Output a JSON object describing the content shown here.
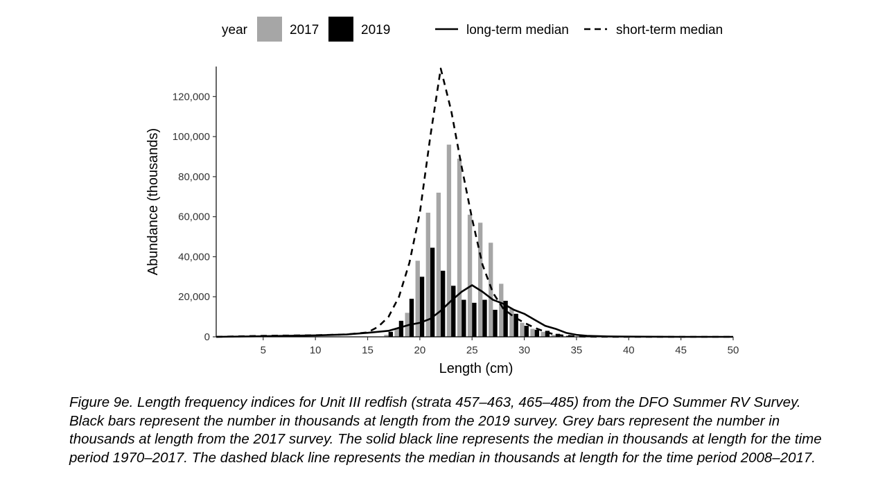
{
  "chart_data": {
    "type": "bar",
    "xlabel": "Length (cm)",
    "ylabel": "Abundance (thousands)",
    "xlim": [
      0.5,
      50
    ],
    "ylim": [
      0,
      135000
    ],
    "x_ticks": [
      5,
      10,
      15,
      20,
      25,
      30,
      35,
      40,
      45,
      50
    ],
    "y_ticks": [
      0,
      20000,
      40000,
      60000,
      80000,
      100000,
      120000
    ],
    "x_tick_labels": [
      "5",
      "10",
      "15",
      "20",
      "25",
      "30",
      "35",
      "40",
      "45",
      "50"
    ],
    "y_tick_labels": [
      "0",
      "20,000",
      "40,000",
      "60,000",
      "80,000",
      "100,000",
      "120,000"
    ],
    "legend": {
      "position": "top",
      "title": "year",
      "items": [
        {
          "label": "2017",
          "kind": "bar",
          "color": "#a6a6a6"
        },
        {
          "label": "2019",
          "kind": "bar",
          "color": "#000000"
        },
        {
          "label": "long-term median",
          "kind": "line",
          "dash": "solid",
          "color": "#000000"
        },
        {
          "label": "short-term median",
          "kind": "line",
          "dash": "dashed",
          "color": "#000000"
        }
      ]
    },
    "bar_series": [
      {
        "name": "2017",
        "color": "#a6a6a6",
        "x": [
          17,
          18,
          19,
          20,
          21,
          22,
          23,
          24,
          25,
          26,
          27,
          28,
          29,
          30,
          31,
          32,
          33
        ],
        "values": [
          1000,
          4000,
          12000,
          38000,
          62000,
          72000,
          96000,
          89000,
          61000,
          57000,
          47000,
          26500,
          14000,
          7000,
          4000,
          2500,
          1000
        ]
      },
      {
        "name": "2019",
        "color": "#000000",
        "x": [
          17,
          18,
          19,
          20,
          21,
          22,
          23,
          24,
          25,
          26,
          27,
          28,
          29,
          30,
          31,
          32,
          33,
          34
        ],
        "values": [
          2500,
          8000,
          19000,
          30000,
          44500,
          33000,
          25500,
          18500,
          17000,
          18500,
          13500,
          18000,
          11500,
          5500,
          3500,
          3000,
          1500,
          500
        ]
      }
    ],
    "line_series": [
      {
        "name": "long-term median",
        "dash": "solid",
        "x": [
          0.5,
          5,
          10,
          13,
          15,
          17,
          18,
          19,
          20,
          21,
          22,
          23,
          24,
          25,
          26,
          27,
          28,
          29,
          30,
          31,
          32,
          33,
          34,
          35,
          36,
          38,
          40,
          45,
          50
        ],
        "y": [
          0,
          300,
          700,
          1200,
          2000,
          3000,
          4500,
          6000,
          7000,
          9000,
          13000,
          18000,
          22500,
          25800,
          22500,
          18500,
          16500,
          13500,
          11500,
          8500,
          5500,
          4000,
          2000,
          1000,
          500,
          200,
          100,
          0,
          0
        ]
      },
      {
        "name": "short-term median",
        "dash": "dashed",
        "x": [
          0.5,
          5,
          10,
          13,
          15,
          16,
          17,
          18,
          19,
          20,
          21,
          22,
          23,
          24,
          25,
          26,
          27,
          28,
          29,
          30,
          31,
          32,
          33,
          34,
          35,
          36,
          40,
          45,
          50
        ],
        "y": [
          0,
          500,
          800,
          1200,
          2200,
          5000,
          10000,
          20000,
          37000,
          62000,
          100000,
          134000,
          113000,
          85000,
          59000,
          36000,
          22000,
          14000,
          10000,
          7000,
          4500,
          2500,
          1000,
          500,
          200,
          100,
          0,
          0,
          0
        ]
      }
    ]
  },
  "caption": "Figure 9e. Length frequency indices for Unit III redfish (strata 457–463, 465–485) from the DFO Summer RV Survey. Black bars represent the number in thousands at length from the 2019 survey. Grey bars represent the number in thousands at length from the 2017 survey. The solid black line represents the median in thousands at length for the time period 1970–2017. The dashed black line represents the median in thousands at length for the time period 2008–2017."
}
